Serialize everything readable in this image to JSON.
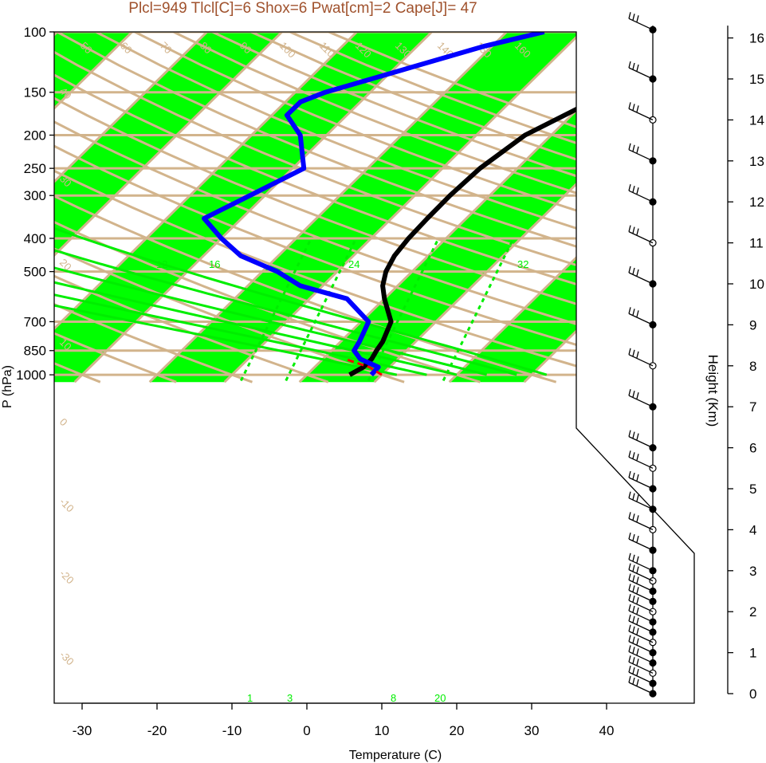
{
  "chart_data": {
    "type": "line",
    "title": "Plcl=949 Tlcl[C]=6 Shox=6 Pwat[cm]=2 Cape[J]= 47",
    "xlabel": "Temperature (C)",
    "ylabel": "P (hPa)",
    "y2label": "Height (Km)",
    "xlim": [
      -33,
      41
    ],
    "ylim": [
      1050,
      100
    ],
    "x_ticks": [
      "-30",
      "-20",
      "-10",
      "0",
      "10",
      "20",
      "30",
      "40"
    ],
    "y_ticks": [
      "100",
      "150",
      "200",
      "250",
      "300",
      "400",
      "500",
      "700",
      "850",
      "1000"
    ],
    "height_ticks": [
      "0",
      "1",
      "2",
      "3",
      "4",
      "5",
      "6",
      "7",
      "8",
      "9",
      "10",
      "11",
      "12",
      "13",
      "14",
      "15",
      "16"
    ],
    "colors": {
      "title": "#a0522d",
      "isotherm": "#d2b48c",
      "band": "#00ff00",
      "mixing": "#00ee00",
      "temperature": "#000000",
      "dewpoint": "#0000ff",
      "parcel": "#ff0000",
      "wind": "#000000"
    },
    "isotherm_labels": [
      "50",
      "60",
      "70",
      "80",
      "90",
      "100",
      "110",
      "120",
      "130",
      "140",
      "150",
      "160"
    ],
    "dry_adiabat_labels": [
      "40",
      "30",
      "20",
      "10",
      "0",
      "-10",
      "-20",
      "-30"
    ],
    "right_axis_labels": [
      "30",
      "20",
      "10",
      "0",
      "10",
      "20",
      "30"
    ],
    "moist_labels": [
      "12",
      "16",
      "24",
      "32"
    ],
    "mixing_labels": [
      "1",
      "3",
      "8",
      "20"
    ],
    "series": [
      {
        "name": "Temperature",
        "points": [
          [
            5.7,
            1000
          ],
          [
            6.5,
            950
          ],
          [
            6.5,
            900
          ],
          [
            6.0,
            850
          ],
          [
            5.6,
            800
          ],
          [
            4.0,
            700
          ],
          [
            0.0,
            600
          ],
          [
            -2.0,
            550
          ],
          [
            -3.5,
            500
          ],
          [
            -4.5,
            450
          ],
          [
            -5.0,
            400
          ],
          [
            -5.2,
            350
          ],
          [
            -5.3,
            300
          ],
          [
            -5.0,
            250
          ],
          [
            -3.5,
            200
          ],
          [
            2.0,
            150
          ],
          [
            8.0,
            125
          ],
          [
            15.0,
            110
          ],
          [
            21.0,
            100
          ]
        ]
      },
      {
        "name": "Dewpoint",
        "points": [
          [
            8.6,
            1000
          ],
          [
            8.5,
            950
          ],
          [
            5.0,
            900
          ],
          [
            3.0,
            850
          ],
          [
            2.5,
            800
          ],
          [
            1.0,
            700
          ],
          [
            -5.0,
            600
          ],
          [
            -13.0,
            550
          ],
          [
            -18.0,
            500
          ],
          [
            -25.0,
            450
          ],
          [
            -30.0,
            400
          ],
          [
            -35.0,
            350
          ],
          [
            -32.0,
            300
          ],
          [
            -28.5,
            250
          ],
          [
            -33.5,
            200
          ],
          [
            -38.0,
            175
          ],
          [
            -38.0,
            160
          ],
          [
            -36.0,
            150
          ],
          [
            -21.0,
            110
          ],
          [
            -15.0,
            100
          ]
        ]
      },
      {
        "name": "Parcel",
        "points": [
          [
            10.0,
            1000
          ],
          [
            7.3,
            950
          ],
          [
            3.0,
            900
          ]
        ]
      }
    ],
    "wind_heights_km": [
      0,
      0.25,
      0.5,
      0.75,
      1,
      1.25,
      1.5,
      1.75,
      2,
      2.25,
      2.5,
      2.75,
      3,
      3.5,
      4,
      4.5,
      5,
      5.5,
      6,
      7,
      8,
      9,
      10,
      11,
      12,
      13,
      14,
      15,
      16.2
    ]
  }
}
